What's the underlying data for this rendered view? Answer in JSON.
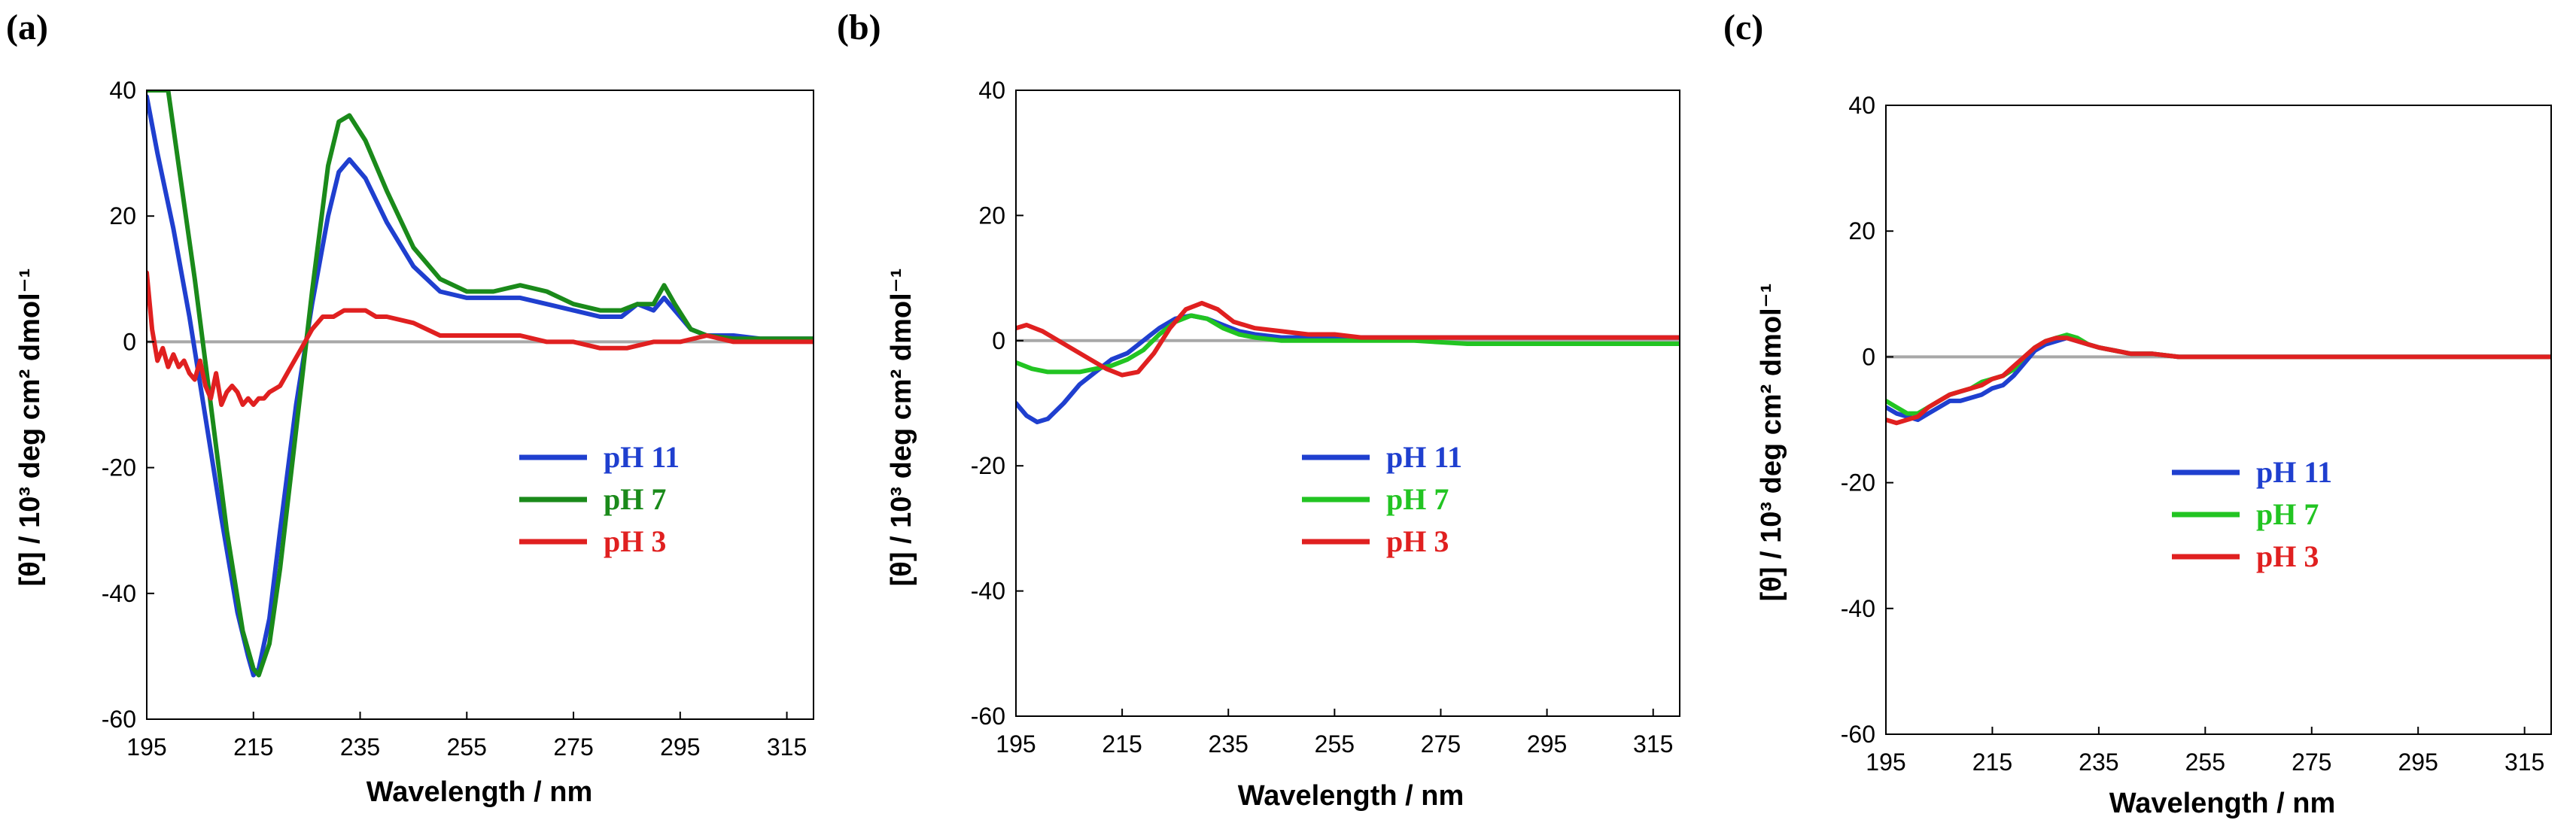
{
  "chart_data": [
    {
      "type": "line",
      "panel_label": "(a)",
      "xlabel": "Wavelength / nm",
      "ylabel": "[θ] / 10³ deg cm² dmol⁻¹",
      "xlim": [
        195,
        320
      ],
      "ylim": [
        -60,
        40
      ],
      "xticks": [
        "195",
        "215",
        "235",
        "255",
        "275",
        "295",
        "315"
      ],
      "yticks": [
        "40",
        "20",
        "0",
        "-20",
        "-40",
        "-60"
      ],
      "zero_line": true,
      "legend_position": "lower-right",
      "series": [
        {
          "name": "pH 11",
          "color": "#1f3fcf",
          "x": [
            195,
            197,
            200,
            203,
            206,
            209,
            212,
            214,
            215,
            216,
            218,
            220,
            223,
            226,
            229,
            231,
            233,
            236,
            240,
            245,
            250,
            255,
            260,
            265,
            270,
            275,
            280,
            284,
            287,
            290,
            292,
            294,
            297,
            300,
            305,
            310,
            315,
            320
          ],
          "y": [
            39,
            30,
            18,
            4,
            -12,
            -28,
            -43,
            -50,
            -53,
            -52,
            -44,
            -30,
            -10,
            6,
            20,
            27,
            29,
            26,
            19,
            12,
            8,
            7,
            7,
            7,
            6,
            5,
            4,
            4,
            6,
            5,
            7,
            5,
            2,
            1,
            1,
            0.5,
            0.5,
            0.5
          ]
        },
        {
          "name": "pH 7",
          "color": "#1a8a1a",
          "x": [
            195,
            199,
            201,
            204,
            207,
            210,
            213,
            215,
            216,
            218,
            220,
            223,
            226,
            229,
            231,
            233,
            236,
            240,
            245,
            250,
            255,
            260,
            265,
            270,
            275,
            280,
            284,
            287,
            290,
            292,
            294,
            297,
            300,
            305,
            310,
            315,
            320
          ],
          "y": [
            40,
            40,
            28,
            10,
            -10,
            -30,
            -46,
            -52,
            -53,
            -48,
            -36,
            -14,
            8,
            28,
            35,
            36,
            32,
            24,
            15,
            10,
            8,
            8,
            9,
            8,
            6,
            5,
            5,
            6,
            6,
            9,
            6,
            2,
            1,
            0.5,
            0.5,
            0.5,
            0.5
          ]
        },
        {
          "name": "pH 3",
          "color": "#e02020",
          "x": [
            195,
            196,
            197,
            198,
            199,
            200,
            201,
            202,
            203,
            204,
            205,
            206,
            207,
            208,
            209,
            210,
            211,
            212,
            213,
            214,
            215,
            216,
            217,
            218,
            220,
            222,
            224,
            226,
            228,
            230,
            232,
            234,
            236,
            238,
            240,
            245,
            250,
            255,
            260,
            265,
            270,
            275,
            280,
            285,
            290,
            295,
            300,
            305,
            310,
            315,
            320
          ],
          "y": [
            11,
            2,
            -3,
            -1,
            -4,
            -2,
            -4,
            -3,
            -5,
            -6,
            -3,
            -7,
            -9,
            -5,
            -10,
            -8,
            -7,
            -8,
            -10,
            -9,
            -10,
            -9,
            -9,
            -8,
            -7,
            -4,
            -1,
            2,
            4,
            4,
            5,
            5,
            5,
            4,
            4,
            3,
            1,
            1,
            1,
            1,
            0,
            0,
            -1,
            -1,
            0,
            0,
            1,
            0,
            0,
            0,
            0
          ]
        }
      ]
    },
    {
      "type": "line",
      "panel_label": "(b)",
      "xlabel": "Wavelength / nm",
      "ylabel": "[θ] / 10³ deg cm² dmol⁻¹",
      "xlim": [
        195,
        320
      ],
      "ylim": [
        -60,
        40
      ],
      "xticks": [
        "195",
        "215",
        "235",
        "255",
        "275",
        "295",
        "315"
      ],
      "yticks": [
        "40",
        "20",
        "0",
        "-20",
        "-40",
        "-60"
      ],
      "zero_line": true,
      "legend_position": "lower-right",
      "series": [
        {
          "name": "pH 11",
          "color": "#1f3fcf",
          "x": [
            195,
            197,
            199,
            201,
            204,
            207,
            210,
            213,
            216,
            219,
            222,
            225,
            228,
            231,
            234,
            237,
            240,
            245,
            250,
            255,
            260,
            270,
            280,
            290,
            300,
            310,
            320
          ],
          "y": [
            -10,
            -12,
            -13,
            -12.5,
            -10,
            -7,
            -5,
            -3,
            -2,
            0,
            2,
            3.5,
            4,
            3.5,
            2.5,
            1.5,
            1,
            0.5,
            0.5,
            0.5,
            0.5,
            0.5,
            0.5,
            0.5,
            0.5,
            0.5,
            0.5
          ]
        },
        {
          "name": "pH 7",
          "color": "#22c422",
          "x": [
            195,
            198,
            201,
            204,
            207,
            210,
            213,
            216,
            219,
            222,
            225,
            228,
            231,
            234,
            237,
            240,
            245,
            250,
            255,
            260,
            270,
            280,
            290,
            300,
            310,
            320
          ],
          "y": [
            -3.5,
            -4.5,
            -5,
            -5,
            -5,
            -4.5,
            -4,
            -3,
            -1.5,
            1,
            3,
            4,
            3.5,
            2,
            1,
            0.5,
            0,
            0,
            0,
            0,
            0,
            -0.5,
            -0.5,
            -0.5,
            -0.5,
            -0.5
          ]
        },
        {
          "name": "pH 3",
          "color": "#e02020",
          "x": [
            195,
            197,
            200,
            203,
            206,
            209,
            212,
            215,
            218,
            221,
            224,
            227,
            230,
            233,
            236,
            240,
            245,
            250,
            255,
            260,
            270,
            280,
            290,
            300,
            310,
            320
          ],
          "y": [
            2,
            2.5,
            1.5,
            0,
            -1.5,
            -3,
            -4.5,
            -5.5,
            -5,
            -2,
            2,
            5,
            6,
            5,
            3,
            2,
            1.5,
            1,
            1,
            0.5,
            0.5,
            0.5,
            0.5,
            0.5,
            0.5,
            0.5
          ]
        }
      ]
    },
    {
      "type": "line",
      "panel_label": "(c)",
      "xlabel": "Wavelength / nm",
      "ylabel": "[θ] / 10³ deg cm² dmol⁻¹",
      "xlim": [
        195,
        320
      ],
      "ylim": [
        -60,
        40
      ],
      "xticks": [
        "195",
        "215",
        "235",
        "255",
        "275",
        "295",
        "315"
      ],
      "yticks": [
        "40",
        "20",
        "0",
        "-20",
        "-40",
        "-60"
      ],
      "zero_line": true,
      "legend_position": "lower-right",
      "series": [
        {
          "name": "pH 11",
          "color": "#1f3fcf",
          "x": [
            195,
            197,
            199,
            201,
            203,
            205,
            207,
            209,
            211,
            213,
            215,
            217,
            219,
            221,
            223,
            225,
            227,
            229,
            231,
            233,
            235,
            238,
            241,
            245,
            250,
            255,
            260,
            270,
            280,
            290,
            300,
            310,
            320
          ],
          "y": [
            -8,
            -9,
            -9.5,
            -10,
            -9,
            -8,
            -7,
            -7,
            -6.5,
            -6,
            -5,
            -4.5,
            -3,
            -1,
            1,
            2,
            2.5,
            3,
            2.5,
            2,
            1.5,
            1,
            0.5,
            0.5,
            0,
            0,
            0,
            0,
            0,
            0,
            0,
            0,
            0
          ]
        },
        {
          "name": "pH 7",
          "color": "#22c422",
          "x": [
            195,
            197,
            199,
            201,
            203,
            205,
            207,
            209,
            211,
            213,
            215,
            217,
            219,
            221,
            223,
            225,
            227,
            229,
            231,
            233,
            235,
            238,
            241,
            245,
            250,
            255,
            260,
            270,
            280,
            290,
            300,
            310,
            320
          ],
          "y": [
            -7,
            -8,
            -9,
            -9,
            -8,
            -7,
            -6,
            -5.5,
            -5,
            -4,
            -3.5,
            -3,
            -2,
            0,
            1.5,
            2.5,
            3,
            3.5,
            3,
            2,
            1.5,
            1,
            0.5,
            0.5,
            0,
            0,
            0,
            0,
            0,
            0,
            0,
            0,
            0
          ]
        },
        {
          "name": "pH 3",
          "color": "#e02020",
          "x": [
            195,
            197,
            199,
            201,
            203,
            205,
            207,
            209,
            211,
            213,
            215,
            217,
            219,
            221,
            223,
            225,
            227,
            229,
            231,
            233,
            235,
            238,
            241,
            245,
            250,
            255,
            260,
            270,
            280,
            290,
            300,
            310,
            320
          ],
          "y": [
            -10,
            -10.5,
            -10,
            -9.5,
            -8,
            -7,
            -6,
            -5.5,
            -5,
            -4.5,
            -3.5,
            -3,
            -1.5,
            0,
            1.5,
            2.5,
            3,
            3,
            2.5,
            2,
            1.5,
            1,
            0.5,
            0.5,
            0,
            0,
            0,
            0,
            0,
            0,
            0,
            0,
            0
          ]
        }
      ]
    }
  ]
}
